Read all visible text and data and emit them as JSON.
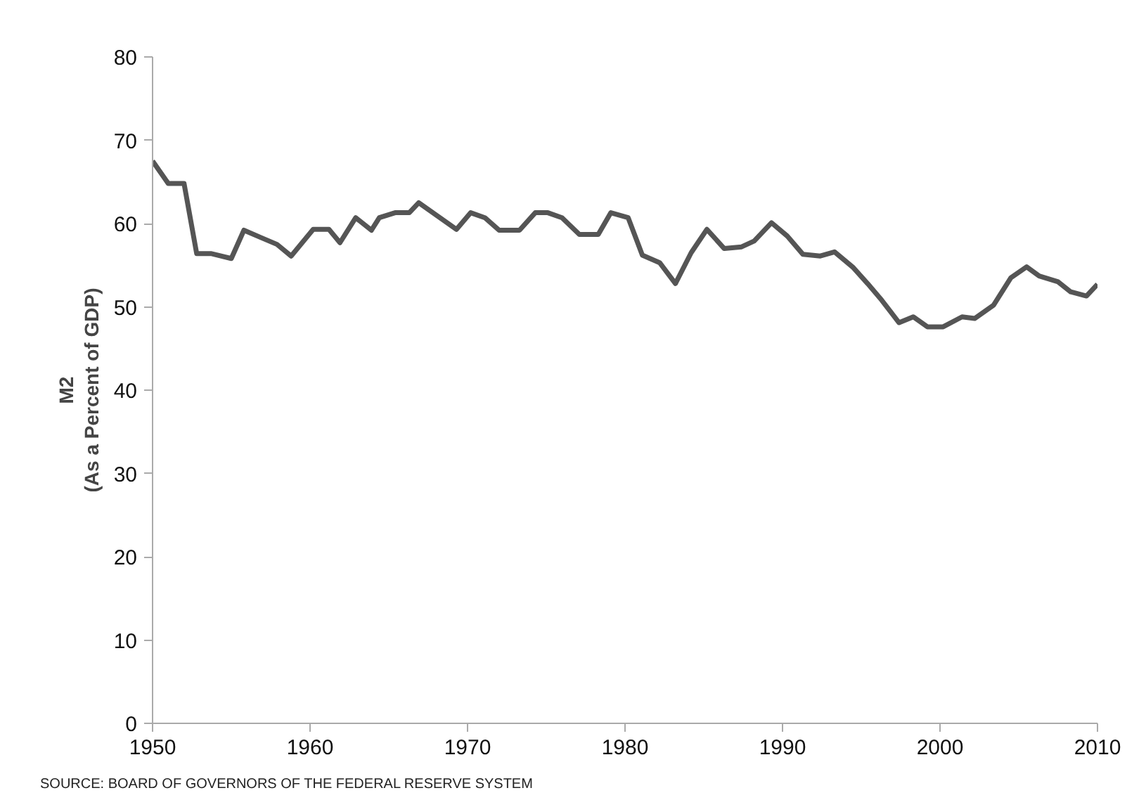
{
  "chart_data": {
    "type": "line",
    "ylabel": "M2\n(As a Percent of GDP)",
    "annotations": [
      "SOURCE: BOARD OF GOVERNORS OF THE FEDERAL RESERVE SYSTEM"
    ],
    "x": [
      1950.0,
      1951.0,
      1952.0,
      1952.8,
      1953.7,
      1955.0,
      1955.8,
      1956.9,
      1957.9,
      1958.8,
      1960.2,
      1961.2,
      1961.9,
      1962.9,
      1963.9,
      1964.4,
      1965.4,
      1966.3,
      1966.9,
      1968.1,
      1969.3,
      1970.2,
      1971.1,
      1972.0,
      1973.3,
      1974.3,
      1975.1,
      1976.0,
      1977.1,
      1978.3,
      1979.1,
      1980.2,
      1981.1,
      1982.2,
      1983.2,
      1984.2,
      1985.2,
      1986.3,
      1987.4,
      1988.2,
      1989.3,
      1990.3,
      1991.3,
      1992.4,
      1993.3,
      1994.5,
      1995.4,
      1996.3,
      1997.4,
      1998.3,
      1999.2,
      2000.2,
      2001.4,
      2002.2,
      2003.4,
      2004.5,
      2005.5,
      2006.3,
      2007.5,
      2008.3,
      2009.3,
      2010.0
    ],
    "series": [
      {
        "color": "#555555",
        "values": [
          67.5,
          64.8,
          64.8,
          56.4,
          56.4,
          55.8,
          59.2,
          58.3,
          57.5,
          56.1,
          59.3,
          59.3,
          57.7,
          60.7,
          59.2,
          60.7,
          61.3,
          61.3,
          62.5,
          60.9,
          59.3,
          61.3,
          60.7,
          59.2,
          59.2,
          61.3,
          61.3,
          60.7,
          58.7,
          58.7,
          61.3,
          60.7,
          56.2,
          55.3,
          52.8,
          56.5,
          59.3,
          57.0,
          57.2,
          57.9,
          60.1,
          58.5,
          56.3,
          56.1,
          56.6,
          54.7,
          52.8,
          50.8,
          48.1,
          48.8,
          47.6,
          47.6,
          48.8,
          48.6,
          50.2,
          53.5,
          54.8,
          53.7,
          53.0,
          51.8,
          51.3,
          52.7
        ]
      }
    ],
    "xlim": [
      1950,
      2010
    ],
    "xticks": [
      1950,
      1960,
      1970,
      1980,
      1990,
      2000,
      2010
    ],
    "ylim": [
      0,
      80
    ],
    "yticks": [
      0,
      10,
      20,
      30,
      40,
      50,
      60,
      70,
      80
    ],
    "grid": false,
    "marker": "none",
    "line_style": "solid"
  }
}
